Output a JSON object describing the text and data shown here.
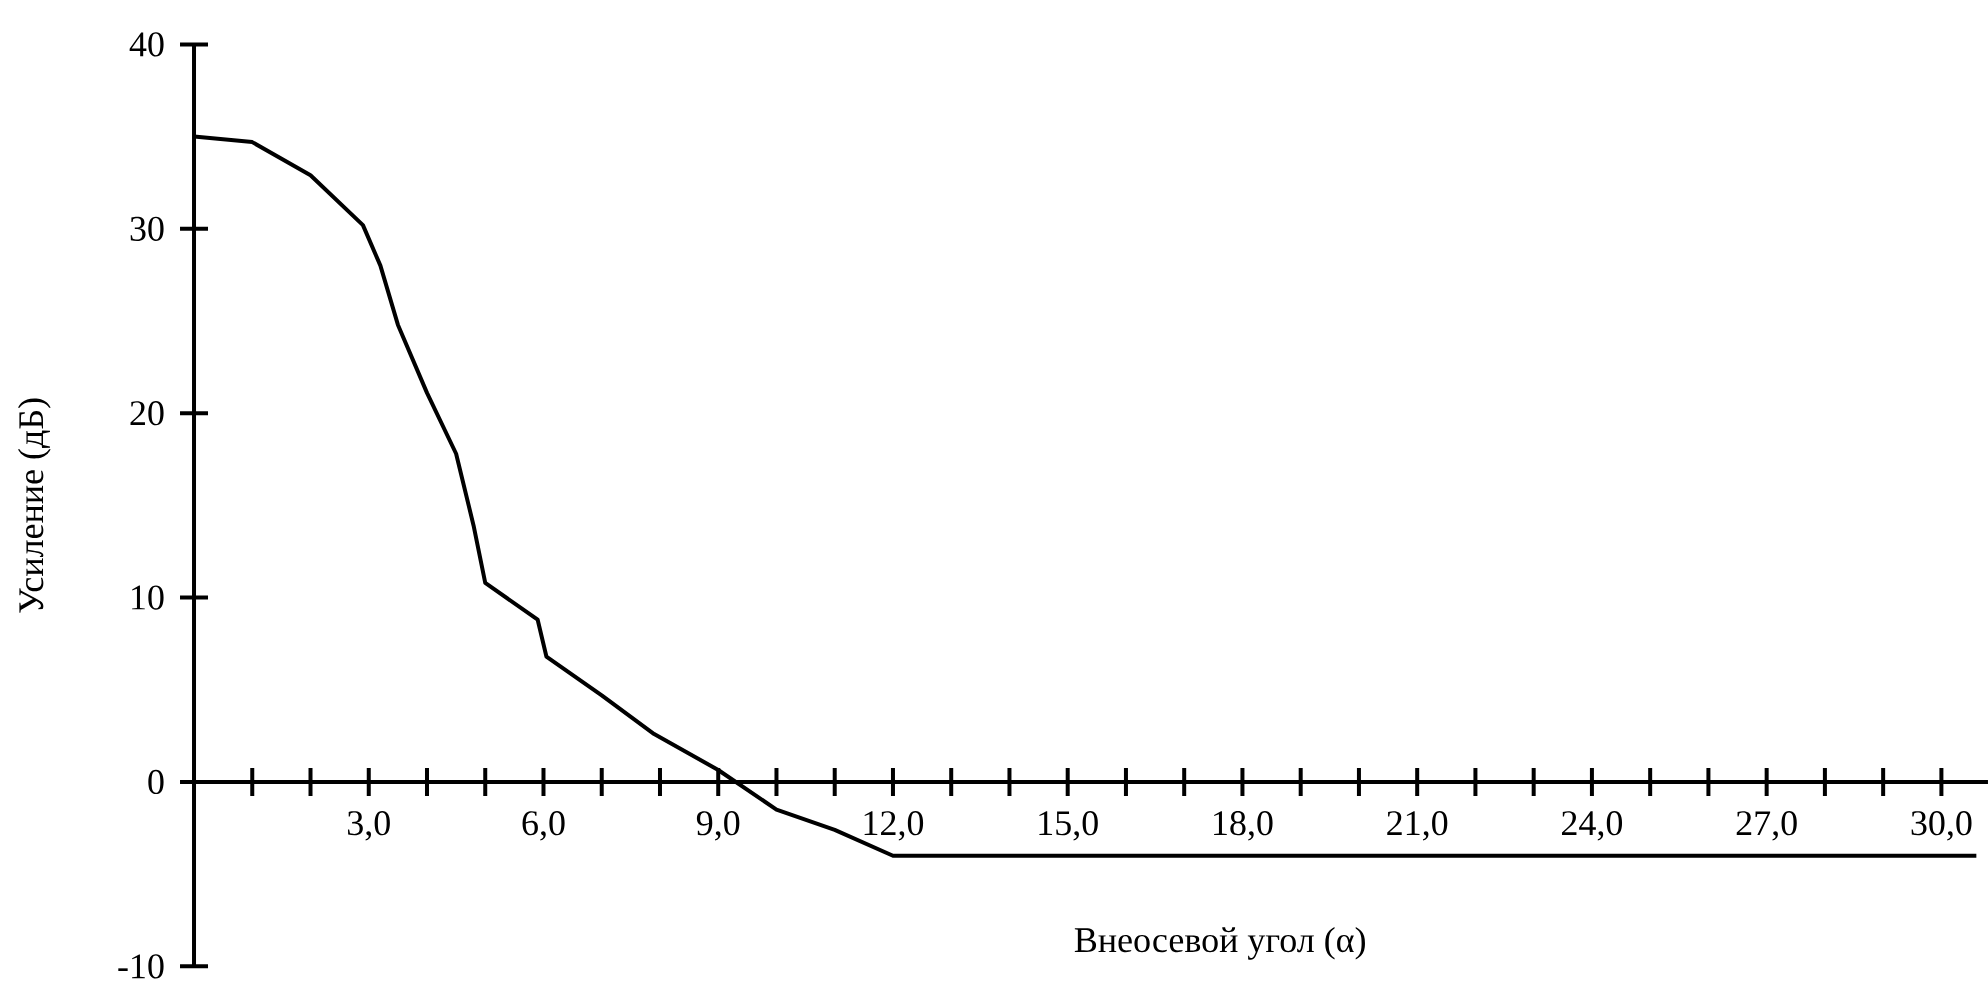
{
  "chart_data": {
    "type": "line",
    "xlabel": "Внеосевой угол (α)",
    "ylabel": "Усиление (дБ)",
    "xlim": [
      0,
      30.8
    ],
    "ylim": [
      -10,
      40
    ],
    "xticks": [
      {
        "value": 1,
        "label": null
      },
      {
        "value": 2,
        "label": null
      },
      {
        "value": 3,
        "label": "3,0"
      },
      {
        "value": 4,
        "label": null
      },
      {
        "value": 5,
        "label": null
      },
      {
        "value": 6,
        "label": "6,0"
      },
      {
        "value": 7,
        "label": null
      },
      {
        "value": 8,
        "label": null
      },
      {
        "value": 9,
        "label": "9,0"
      },
      {
        "value": 10,
        "label": null
      },
      {
        "value": 11,
        "label": null
      },
      {
        "value": 12,
        "label": "12,0"
      },
      {
        "value": 13,
        "label": null
      },
      {
        "value": 14,
        "label": null
      },
      {
        "value": 15,
        "label": "15,0"
      },
      {
        "value": 16,
        "label": null
      },
      {
        "value": 17,
        "label": null
      },
      {
        "value": 18,
        "label": "18,0"
      },
      {
        "value": 19,
        "label": null
      },
      {
        "value": 20,
        "label": null
      },
      {
        "value": 21,
        "label": "21,0"
      },
      {
        "value": 22,
        "label": null
      },
      {
        "value": 23,
        "label": null
      },
      {
        "value": 24,
        "label": "24,0"
      },
      {
        "value": 25,
        "label": null
      },
      {
        "value": 26,
        "label": null
      },
      {
        "value": 27,
        "label": "27,0"
      },
      {
        "value": 28,
        "label": null
      },
      {
        "value": 29,
        "label": null
      },
      {
        "value": 30,
        "label": "30,0"
      }
    ],
    "yticks": [
      -10,
      0,
      10,
      20,
      30,
      40
    ],
    "series": [
      {
        "color": "#000000",
        "x": [
          0,
          1.0,
          2.0,
          2.9,
          3.2,
          3.5,
          4.0,
          4.5,
          4.8,
          5.0,
          5.9,
          6.05,
          7.0,
          7.9,
          9.0,
          10.0,
          11.0,
          12.0,
          30.6
        ],
        "values": [
          35.0,
          34.7,
          32.9,
          30.2,
          28.0,
          24.8,
          21.1,
          17.8,
          13.9,
          10.8,
          8.8,
          6.8,
          4.7,
          2.6,
          0.65,
          -1.5,
          -2.6,
          -4.0,
          -4.0
        ]
      }
    ]
  }
}
